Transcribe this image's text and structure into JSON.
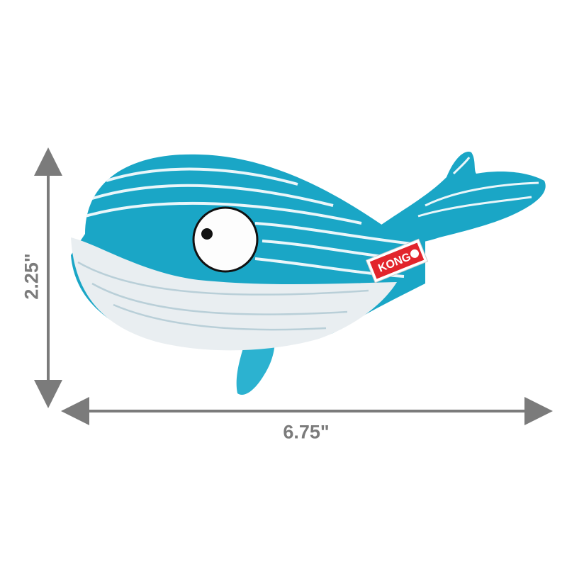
{
  "dimensions": {
    "height": "2.25\"",
    "width": "6.75\""
  },
  "product": {
    "brand_tag": "KONG",
    "colors": {
      "body_blue": "#1aa6c6",
      "belly_white": "#e9eef1",
      "stripe": "#eaf6fa",
      "tag_red": "#e2252c",
      "arrow_gray": "#7b7b7b"
    }
  }
}
